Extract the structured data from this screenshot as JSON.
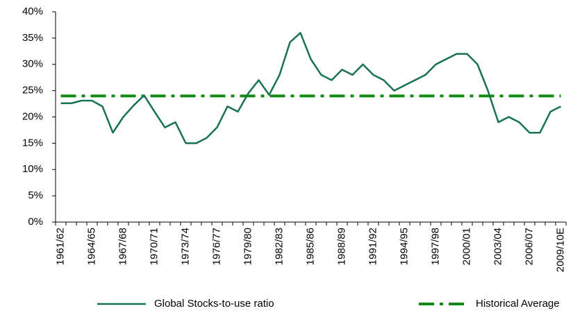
{
  "chart_data": {
    "type": "line",
    "categories": [
      "1961/62",
      null,
      null,
      "1964/65",
      null,
      null,
      "1967/68",
      null,
      null,
      "1970/71",
      null,
      null,
      "1973/74",
      null,
      null,
      "1976/77",
      null,
      null,
      "1979/80",
      null,
      null,
      "1982/83",
      null,
      null,
      "1985/86",
      null,
      null,
      "1988/89",
      null,
      null,
      "1991/92",
      null,
      null,
      "1994/95",
      null,
      null,
      "1997/98",
      null,
      null,
      "2000/01",
      null,
      null,
      "2003/04",
      null,
      null,
      "2006/07",
      null,
      null,
      "2009/10E"
    ],
    "series": [
      {
        "name": "Global Stocks-to-use ratio",
        "color": "#17724f",
        "dash": "solid",
        "values": [
          22.6,
          22.6,
          23.1,
          23.1,
          22,
          17,
          20,
          22.2,
          24.1,
          21,
          18,
          19,
          15,
          15,
          16,
          18,
          22,
          21,
          24.5,
          27,
          24.2,
          28,
          34.2,
          36,
          31,
          28,
          27,
          29,
          28,
          30,
          28,
          27,
          25,
          26,
          27,
          28,
          30,
          31,
          32,
          32,
          30,
          25,
          19,
          20,
          19,
          17,
          17,
          21,
          22
        ]
      },
      {
        "name": "Historical Average",
        "color": "#138a13",
        "dash": "dashdot",
        "values": [
          24,
          24,
          24,
          24,
          24,
          24,
          24,
          24,
          24,
          24,
          24,
          24,
          24,
          24,
          24,
          24,
          24,
          24,
          24,
          24,
          24,
          24,
          24,
          24,
          24,
          24,
          24,
          24,
          24,
          24,
          24,
          24,
          24,
          24,
          24,
          24,
          24,
          24,
          24,
          24,
          24,
          24,
          24,
          24,
          24,
          24,
          24,
          24,
          24
        ]
      }
    ],
    "ylim": [
      0,
      40
    ],
    "yticks": [
      {
        "value": 0,
        "label": "0%"
      },
      {
        "value": 5,
        "label": "5%"
      },
      {
        "value": 10,
        "label": "10%"
      },
      {
        "value": 15,
        "label": "15%"
      },
      {
        "value": 20,
        "label": "20%"
      },
      {
        "value": 25,
        "label": "25%"
      },
      {
        "value": 30,
        "label": "30%"
      },
      {
        "value": 35,
        "label": "35%"
      },
      {
        "value": 40,
        "label": "40%"
      }
    ],
    "legend": "bottom"
  }
}
